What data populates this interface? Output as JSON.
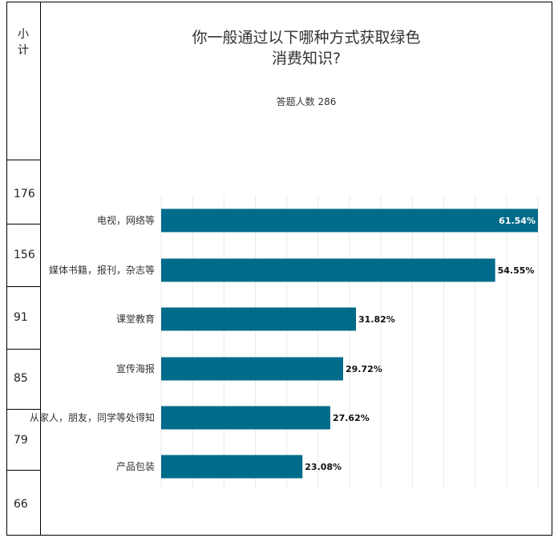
{
  "table": {
    "header": "小计",
    "counts": [
      "176",
      "156",
      "91",
      "85",
      "79",
      "66"
    ]
  },
  "colors": {
    "bar": "#006b8a",
    "grid": "#e8e8e8"
  },
  "chart_data": {
    "type": "bar",
    "orientation": "horizontal",
    "title": "你一般通过以下哪种方式获取绿色消费知识?",
    "subtitle": "答题人数 286",
    "categories": [
      "电视，网络等",
      "媒体书籍，报刊，杂志等",
      "课堂教育",
      "宣传海报",
      "从家人，朋友，同学等处得知",
      "产品包装"
    ],
    "values": [
      61.54,
      54.55,
      31.82,
      29.72,
      27.62,
      23.08
    ],
    "value_labels": [
      "61.54%",
      "54.55%",
      "31.82%",
      "29.72%",
      "27.62%",
      "23.08%"
    ],
    "xlim": [
      0,
      61.54
    ],
    "grid": "vertical"
  }
}
